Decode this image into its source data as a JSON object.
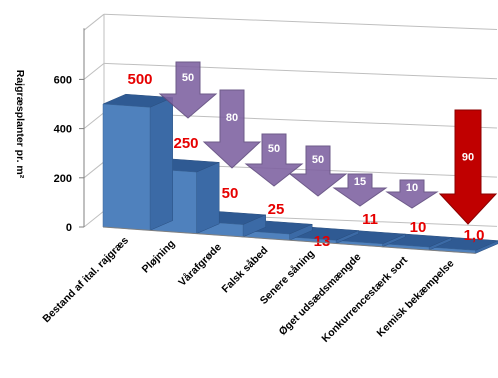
{
  "chart_data": {
    "type": "bar",
    "title": "",
    "xlabel": "",
    "ylabel": "Rajgræsplanter pr. m²",
    "ylim": [
      0,
      800
    ],
    "yticks": [
      0,
      200,
      400,
      600
    ],
    "grid": true,
    "categories": [
      "Bestand af ital. rajgræs",
      "Pløjning",
      "Vårafgrøde",
      "Falsk såbed",
      "Senere såning",
      "Øget udsædsmængde",
      "Konkurrencestærk sort",
      "Kemisk bekæmpelse"
    ],
    "values": [
      500,
      250,
      50,
      25,
      13,
      11,
      10,
      1.0
    ],
    "value_labels": [
      "500",
      "250",
      "50",
      "25",
      "13",
      "11",
      "10",
      "1,0"
    ],
    "reduction_arrows": [
      {
        "between": [
          "Bestand af ital. rajgræs",
          "Pløjning"
        ],
        "value": "50",
        "color": "#8064a2"
      },
      {
        "between": [
          "Pløjning",
          "Vårafgrøde"
        ],
        "value": "80",
        "color": "#8064a2"
      },
      {
        "between": [
          "Vårafgrøde",
          "Falsk såbed"
        ],
        "value": "50",
        "color": "#8064a2"
      },
      {
        "between": [
          "Falsk såbed",
          "Senere såning"
        ],
        "value": "50",
        "color": "#8064a2"
      },
      {
        "between": [
          "Senere såning",
          "Øget udsædsmængde"
        ],
        "value": "15",
        "color": "#8064a2"
      },
      {
        "between": [
          "Øget udsædsmængde",
          "Konkurrencestærk sort"
        ],
        "value": "10",
        "color": "#8064a2"
      },
      {
        "between": [
          "Konkurrencestærk sort",
          "Kemisk bekæmpelse"
        ],
        "value": "90",
        "color": "#c00000"
      }
    ],
    "colors": {
      "bar": "#4f81bd",
      "value_label": "#e60000",
      "arrow": "#8064a2",
      "arrow_highlight": "#c00000"
    }
  }
}
